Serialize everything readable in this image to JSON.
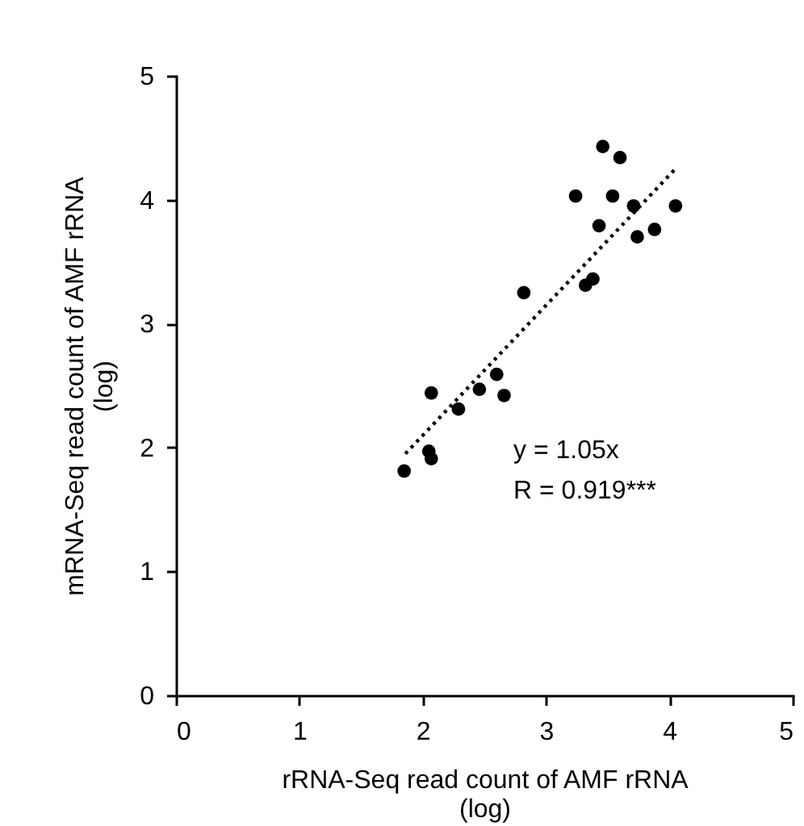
{
  "chart_data": {
    "type": "scatter",
    "xlabel": "rRNA-Seq read count of AMF rRNA (log)",
    "ylabel": "mRNA-Seq read count of AMF rRNA (log)",
    "xlim": [
      0,
      5
    ],
    "ylim": [
      0,
      5
    ],
    "xticks": [
      0,
      1,
      2,
      3,
      4,
      5
    ],
    "yticks": [
      0,
      1,
      2,
      3,
      4,
      5
    ],
    "grid": false,
    "annotations": [
      "y = 1.05x",
      "R = 0.919***"
    ],
    "series": [
      {
        "color": "#000000",
        "marker": "circle",
        "x": [
          3.46,
          3.6,
          3.24,
          3.54,
          3.71,
          4.05,
          3.43,
          3.74,
          3.88,
          3.32,
          3.38,
          2.82,
          2.6,
          2.46,
          2.66,
          2.29,
          2.07,
          2.05,
          2.07,
          1.85
        ],
        "values": [
          4.43,
          4.34,
          4.03,
          4.03,
          3.95,
          3.95,
          3.79,
          3.7,
          3.76,
          3.31,
          3.36,
          3.25,
          2.59,
          2.47,
          2.42,
          2.31,
          2.44,
          1.97,
          1.91,
          1.81
        ]
      },
      {
        "type": "line",
        "color": "#000000",
        "marker": "none",
        "line_style": "dotted",
        "x": [
          1.86,
          4.05
        ],
        "values": [
          1.95,
          4.25
        ]
      }
    ]
  }
}
